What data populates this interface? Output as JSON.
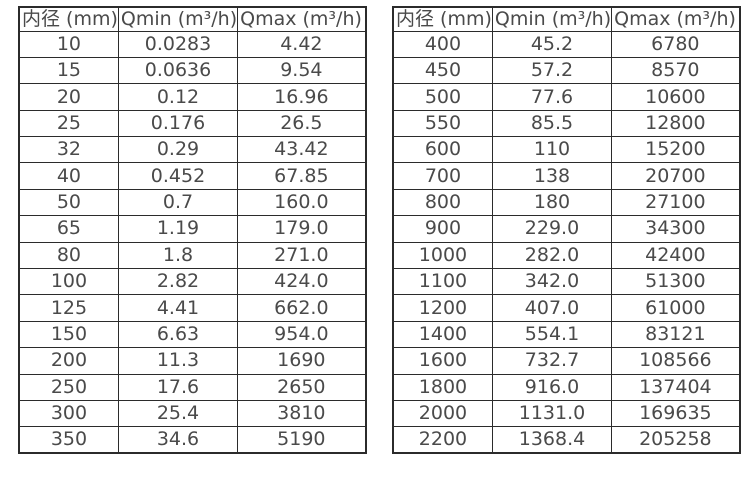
{
  "page": {
    "background_color": "#ffffff",
    "text_color": "#4a4a4a",
    "border_color": "#2b2b2b"
  },
  "tables": [
    {
      "name": "diameter-flow-table-left",
      "headers": [
        "内径 (mm)",
        "Qmin (m³/h)",
        "Qmax (m³/h)"
      ],
      "rows": [
        [
          "10",
          "0.0283",
          "4.42"
        ],
        [
          "15",
          "0.0636",
          "9.54"
        ],
        [
          "20",
          "0.12",
          "16.96"
        ],
        [
          "25",
          "0.176",
          "26.5"
        ],
        [
          "32",
          "0.29",
          "43.42"
        ],
        [
          "40",
          "0.452",
          "67.85"
        ],
        [
          "50",
          "0.7",
          "160.0"
        ],
        [
          "65",
          "1.19",
          "179.0"
        ],
        [
          "80",
          "1.8",
          "271.0"
        ],
        [
          "100",
          "2.82",
          "424.0"
        ],
        [
          "125",
          "4.41",
          "662.0"
        ],
        [
          "150",
          "6.63",
          "954.0"
        ],
        [
          "200",
          "11.3",
          "1690"
        ],
        [
          "250",
          "17.6",
          "2650"
        ],
        [
          "300",
          "25.4",
          "3810"
        ],
        [
          "350",
          "34.6",
          "5190"
        ]
      ]
    },
    {
      "name": "diameter-flow-table-right",
      "headers": [
        "内径 (mm)",
        "Qmin (m³/h)",
        "Qmax (m³/h)"
      ],
      "rows": [
        [
          "400",
          "45.2",
          "6780"
        ],
        [
          "450",
          "57.2",
          "8570"
        ],
        [
          "500",
          "77.6",
          "10600"
        ],
        [
          "550",
          "85.5",
          "12800"
        ],
        [
          "600",
          "110",
          "15200"
        ],
        [
          "700",
          "138",
          "20700"
        ],
        [
          "800",
          "180",
          "27100"
        ],
        [
          "900",
          "229.0",
          "34300"
        ],
        [
          "1000",
          "282.0",
          "42400"
        ],
        [
          "1100",
          "342.0",
          "51300"
        ],
        [
          "1200",
          "407.0",
          "61000"
        ],
        [
          "1400",
          "554.1",
          "83121"
        ],
        [
          "1600",
          "732.7",
          "108566"
        ],
        [
          "1800",
          "916.0",
          "137404"
        ],
        [
          "2000",
          "1131.0",
          "169635"
        ],
        [
          "2200",
          "1368.4",
          "205258"
        ]
      ]
    }
  ]
}
